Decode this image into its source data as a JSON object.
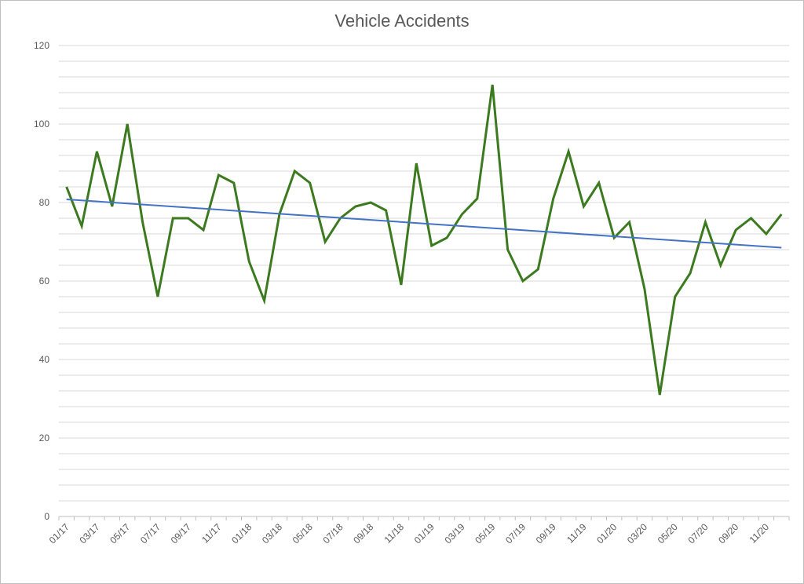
{
  "chart_data": {
    "type": "line",
    "title": "Vehicle Accidents",
    "xlabel": "",
    "ylabel": "",
    "ylim": [
      0,
      120
    ],
    "ytick_labels": [
      "0",
      "20",
      "40",
      "60",
      "80",
      "100",
      "120"
    ],
    "categories": [
      "01/17",
      "02/17",
      "03/17",
      "04/17",
      "05/17",
      "06/17",
      "07/17",
      "08/17",
      "09/17",
      "10/17",
      "11/17",
      "12/17",
      "01/18",
      "02/18",
      "03/18",
      "04/18",
      "05/18",
      "06/18",
      "07/18",
      "08/18",
      "09/18",
      "10/18",
      "11/18",
      "12/18",
      "01/19",
      "02/19",
      "03/19",
      "04/19",
      "05/19",
      "06/19",
      "07/19",
      "08/19",
      "09/19",
      "10/19",
      "11/19",
      "12/19",
      "01/20",
      "02/20",
      "03/20",
      "04/20",
      "05/20",
      "06/20",
      "07/20",
      "08/20",
      "09/20",
      "10/20",
      "11/20",
      "12/20"
    ],
    "xtick_labels": [
      "01/17",
      "03/17",
      "05/17",
      "07/17",
      "09/17",
      "11/17",
      "01/18",
      "03/18",
      "05/18",
      "07/18",
      "09/18",
      "11/18",
      "01/19",
      "03/19",
      "05/19",
      "07/19",
      "09/19",
      "11/19",
      "01/20",
      "03/20",
      "05/20",
      "07/20",
      "09/20",
      "11/20"
    ],
    "series": [
      {
        "values": [
          84,
          74,
          93,
          79,
          100,
          75,
          56,
          76,
          76,
          73,
          87,
          85,
          65,
          55,
          77,
          88,
          85,
          70,
          76,
          79,
          80,
          78,
          59,
          90,
          69,
          71,
          77,
          81,
          110,
          68,
          60,
          63,
          81,
          93,
          79,
          85,
          71,
          75,
          58,
          31,
          56,
          62,
          75,
          64,
          73,
          76,
          72,
          77
        ],
        "color": "#3b7a1f"
      },
      {
        "type": "trendline",
        "start": 80.8,
        "end": 68.5,
        "color": "#4472c4"
      }
    ],
    "grid": "horizontal major and minor",
    "legend": "none"
  }
}
